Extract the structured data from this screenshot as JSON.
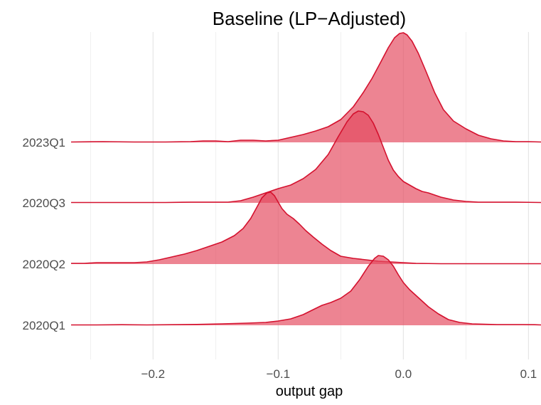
{
  "chart_data": {
    "type": "area",
    "subtype": "ridgeline",
    "title": "Baseline (LP−Adjusted)",
    "xlabel": "output gap",
    "ylabel": "",
    "xlim": [
      -0.2655,
      0.11
    ],
    "xticks": [
      -0.2,
      -0.1,
      0.0,
      0.1
    ],
    "xtick_labels": [
      "−0.2",
      "−0.1",
      "0.0",
      "0.1"
    ],
    "categories": [
      "2020Q1",
      "2020Q2",
      "2020Q3",
      "2023Q1"
    ],
    "grid": "vertical",
    "legend": "none",
    "colors": {
      "fill": "#e5495f",
      "line": "#d4112e",
      "grid": "#e6e6e6"
    },
    "series": [
      {
        "category": "2020Q1",
        "x": [
          -0.2655,
          -0.245,
          -0.225,
          -0.205,
          -0.185,
          -0.165,
          -0.145,
          -0.125,
          -0.11,
          -0.1,
          -0.09,
          -0.08,
          -0.072,
          -0.065,
          -0.058,
          -0.05,
          -0.042,
          -0.035,
          -0.028,
          -0.023,
          -0.02,
          -0.016,
          -0.012,
          -0.008,
          -0.004,
          0.0,
          0.005,
          0.01,
          0.015,
          0.02,
          0.028,
          0.036,
          0.045,
          0.055,
          0.065,
          0.075,
          0.085,
          0.095,
          0.105,
          0.11
        ],
        "y": [
          0.005,
          0.005,
          0.008,
          0.005,
          0.008,
          0.012,
          0.02,
          0.03,
          0.04,
          0.06,
          0.09,
          0.15,
          0.22,
          0.28,
          0.32,
          0.38,
          0.48,
          0.64,
          0.83,
          0.94,
          0.98,
          0.97,
          0.92,
          0.83,
          0.71,
          0.6,
          0.5,
          0.42,
          0.34,
          0.26,
          0.16,
          0.08,
          0.04,
          0.02,
          0.015,
          0.01,
          0.01,
          0.01,
          0.008,
          0.005
        ]
      },
      {
        "category": "2020Q2",
        "x": [
          -0.2655,
          -0.255,
          -0.245,
          -0.235,
          -0.225,
          -0.215,
          -0.205,
          -0.195,
          -0.185,
          -0.175,
          -0.165,
          -0.155,
          -0.145,
          -0.135,
          -0.128,
          -0.122,
          -0.117,
          -0.113,
          -0.109,
          -0.106,
          -0.103,
          -0.1,
          -0.097,
          -0.093,
          -0.088,
          -0.083,
          -0.078,
          -0.072,
          -0.065,
          -0.058,
          -0.05,
          -0.04,
          -0.03,
          -0.02,
          -0.01,
          0.0,
          0.01,
          0.03,
          0.05,
          0.07,
          0.09,
          0.11
        ],
        "y": [
          0.01,
          0.01,
          0.02,
          0.02,
          0.02,
          0.02,
          0.03,
          0.06,
          0.1,
          0.14,
          0.19,
          0.25,
          0.31,
          0.4,
          0.5,
          0.64,
          0.8,
          0.93,
          1.0,
          1.01,
          0.96,
          0.87,
          0.78,
          0.7,
          0.64,
          0.56,
          0.47,
          0.38,
          0.28,
          0.19,
          0.11,
          0.08,
          0.06,
          0.04,
          0.03,
          0.02,
          0.01,
          0.005,
          0.005,
          0.005,
          0.005,
          0.005
        ]
      },
      {
        "category": "2020Q3",
        "x": [
          -0.2655,
          -0.24,
          -0.215,
          -0.19,
          -0.17,
          -0.15,
          -0.14,
          -0.13,
          -0.12,
          -0.11,
          -0.1,
          -0.09,
          -0.08,
          -0.07,
          -0.06,
          -0.052,
          -0.045,
          -0.04,
          -0.036,
          -0.032,
          -0.028,
          -0.024,
          -0.02,
          -0.016,
          -0.012,
          -0.008,
          -0.004,
          0.0,
          0.005,
          0.01,
          0.015,
          0.02,
          0.025,
          0.03,
          0.04,
          0.05,
          0.06,
          0.075,
          0.09,
          0.11
        ],
        "y": [
          0.005,
          0.005,
          0.005,
          0.005,
          0.01,
          0.01,
          0.01,
          0.03,
          0.08,
          0.14,
          0.2,
          0.25,
          0.34,
          0.47,
          0.68,
          0.93,
          1.14,
          1.25,
          1.29,
          1.28,
          1.23,
          1.12,
          0.96,
          0.78,
          0.6,
          0.46,
          0.37,
          0.3,
          0.25,
          0.2,
          0.16,
          0.14,
          0.11,
          0.08,
          0.04,
          0.02,
          0.01,
          0.01,
          0.01,
          0.005
        ]
      },
      {
        "category": "2023Q1",
        "x": [
          -0.2655,
          -0.24,
          -0.215,
          -0.19,
          -0.17,
          -0.16,
          -0.15,
          -0.14,
          -0.13,
          -0.12,
          -0.11,
          -0.1,
          -0.09,
          -0.08,
          -0.07,
          -0.06,
          -0.05,
          -0.04,
          -0.032,
          -0.025,
          -0.018,
          -0.012,
          -0.007,
          -0.003,
          0.0,
          0.003,
          0.007,
          0.012,
          0.018,
          0.025,
          0.032,
          0.04,
          0.05,
          0.06,
          0.07,
          0.08,
          0.09,
          0.1,
          0.11
        ],
        "y": [
          0.005,
          0.01,
          0.005,
          0.005,
          0.01,
          0.02,
          0.02,
          0.01,
          0.03,
          0.03,
          0.02,
          0.03,
          0.07,
          0.11,
          0.16,
          0.22,
          0.32,
          0.5,
          0.7,
          0.9,
          1.13,
          1.33,
          1.47,
          1.53,
          1.54,
          1.51,
          1.42,
          1.25,
          1.0,
          0.7,
          0.46,
          0.3,
          0.19,
          0.1,
          0.05,
          0.02,
          0.01,
          0.01,
          0.005
        ]
      }
    ]
  }
}
